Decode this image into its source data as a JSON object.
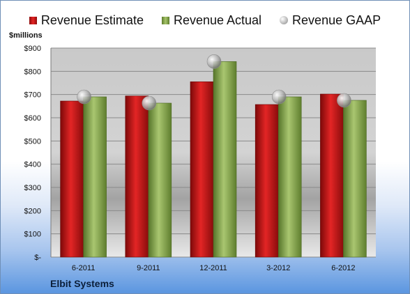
{
  "legend": {
    "estimate_label": "Revenue Estimate",
    "actual_label": "Revenue Actual",
    "gaap_label": "Revenue GAAP"
  },
  "unit_label": "$millions",
  "company_label": "Elbit Systems",
  "colors": {
    "estimate": "#d21a1a",
    "actual": "#8caf4f",
    "gaap": "#b5b5b5",
    "plot_top": "#c8c8c8",
    "plot_bottom": "#e8e8e8"
  },
  "chart_data": {
    "type": "bar",
    "categories": [
      "6-2011",
      "9-2011",
      "12-2011",
      "3-2012",
      "6-2012"
    ],
    "series": [
      {
        "name": "Revenue Estimate",
        "values": [
          672,
          694,
          755,
          657,
          702
        ]
      },
      {
        "name": "Revenue Actual",
        "values": [
          690,
          663,
          842,
          690,
          675
        ]
      },
      {
        "name": "Revenue GAAP",
        "values": [
          690,
          663,
          842,
          690,
          675
        ]
      }
    ],
    "y_tick_labels": [
      "$-",
      "$100",
      "$200",
      "$300",
      "$400",
      "$500",
      "$600",
      "$700",
      "$800",
      "$900"
    ],
    "ylim": [
      0,
      900
    ],
    "grid": true,
    "legend_position": "top"
  }
}
